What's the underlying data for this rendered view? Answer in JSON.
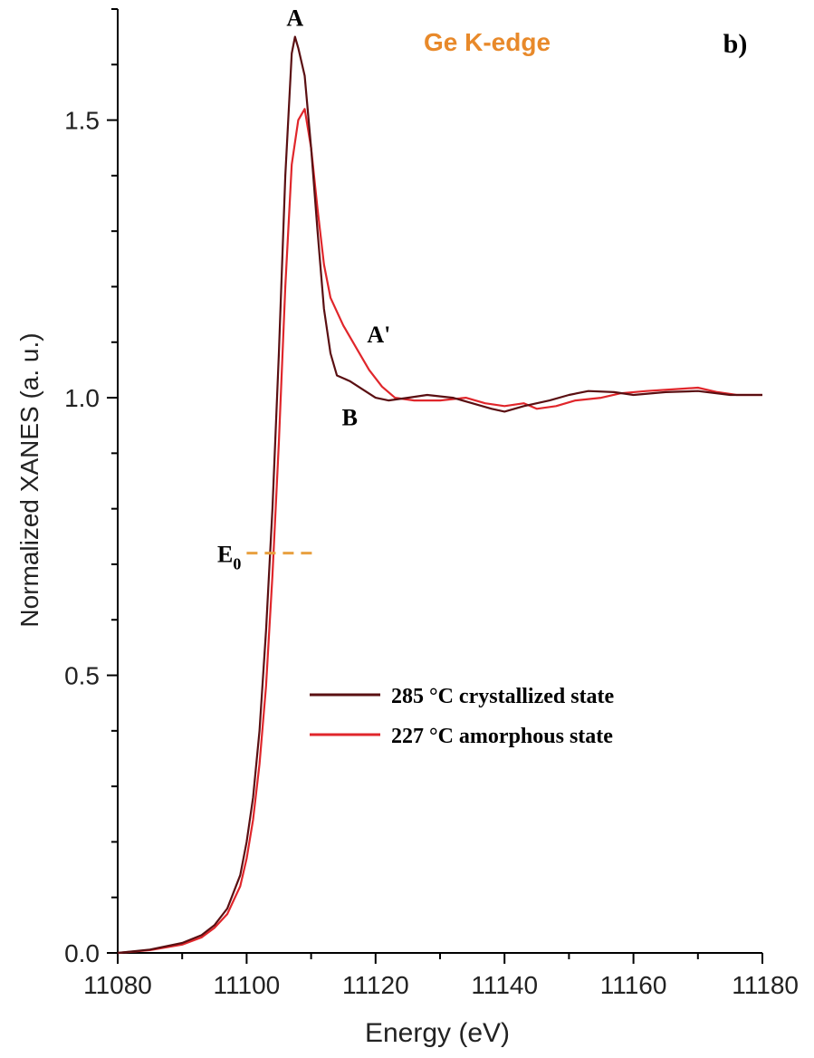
{
  "chart_data": {
    "type": "line",
    "title": "Ge K-edge",
    "panel_label": "b)",
    "xlabel": "Energy (eV)",
    "ylabel": "Normalized XANES (a. u.)",
    "xlim": [
      11080,
      11180
    ],
    "ylim": [
      0.0,
      1.7
    ],
    "x_ticks": [
      11080,
      11100,
      11120,
      11140,
      11160,
      11180
    ],
    "x_tick_labels": [
      "11080",
      "11100",
      "11120",
      "11140",
      "11160",
      "11180"
    ],
    "y_ticks": [
      0.0,
      0.5,
      1.0,
      1.5
    ],
    "y_tick_labels": [
      "0.0",
      "0.5",
      "1.0",
      "1.5"
    ],
    "grid": false,
    "legend_position": "lower-right",
    "colors": {
      "crystallized": "#5a0f12",
      "amorphous": "#e0262b",
      "title": "#e8892a",
      "e0_line": "#e8a040",
      "axis": "#000000"
    },
    "series": [
      {
        "name": "285 °C crystallized state",
        "color_key": "crystallized",
        "points": [
          [
            11080,
            0.0
          ],
          [
            11085,
            0.006
          ],
          [
            11090,
            0.018
          ],
          [
            11093,
            0.032
          ],
          [
            11095,
            0.05
          ],
          [
            11097,
            0.08
          ],
          [
            11099,
            0.14
          ],
          [
            11100,
            0.2
          ],
          [
            11101,
            0.28
          ],
          [
            11102,
            0.4
          ],
          [
            11103,
            0.58
          ],
          [
            11104,
            0.8
          ],
          [
            11105,
            1.08
          ],
          [
            11106,
            1.4
          ],
          [
            11107,
            1.62
          ],
          [
            11107.5,
            1.65
          ],
          [
            11108,
            1.63
          ],
          [
            11109,
            1.58
          ],
          [
            11110,
            1.45
          ],
          [
            11111,
            1.3
          ],
          [
            11112,
            1.16
          ],
          [
            11113,
            1.08
          ],
          [
            11114,
            1.04
          ],
          [
            11116,
            1.03
          ],
          [
            11118,
            1.015
          ],
          [
            11120,
            1.0
          ],
          [
            11122,
            0.995
          ],
          [
            11125,
            1.0
          ],
          [
            11128,
            1.005
          ],
          [
            11132,
            1.0
          ],
          [
            11135,
            0.99
          ],
          [
            11138,
            0.98
          ],
          [
            11140,
            0.975
          ],
          [
            11143,
            0.985
          ],
          [
            11147,
            0.995
          ],
          [
            11150,
            1.005
          ],
          [
            11153,
            1.012
          ],
          [
            11157,
            1.01
          ],
          [
            11160,
            1.005
          ],
          [
            11165,
            1.01
          ],
          [
            11170,
            1.012
          ],
          [
            11175,
            1.005
          ],
          [
            11180,
            1.005
          ]
        ]
      },
      {
        "name": "227 °C amorphous state",
        "color_key": "amorphous",
        "points": [
          [
            11080,
            0.0
          ],
          [
            11085,
            0.005
          ],
          [
            11090,
            0.015
          ],
          [
            11093,
            0.028
          ],
          [
            11095,
            0.045
          ],
          [
            11097,
            0.07
          ],
          [
            11099,
            0.12
          ],
          [
            11100,
            0.17
          ],
          [
            11101,
            0.24
          ],
          [
            11102,
            0.34
          ],
          [
            11103,
            0.48
          ],
          [
            11104,
            0.68
          ],
          [
            11105,
            0.92
          ],
          [
            11106,
            1.2
          ],
          [
            11107,
            1.42
          ],
          [
            11108,
            1.5
          ],
          [
            11109,
            1.52
          ],
          [
            11110,
            1.45
          ],
          [
            11111,
            1.34
          ],
          [
            11112,
            1.24
          ],
          [
            11113,
            1.18
          ],
          [
            11115,
            1.13
          ],
          [
            11117,
            1.09
          ],
          [
            11119,
            1.05
          ],
          [
            11121,
            1.02
          ],
          [
            11123,
            1.0
          ],
          [
            11126,
            0.995
          ],
          [
            11130,
            0.995
          ],
          [
            11134,
            1.0
          ],
          [
            11137,
            0.99
          ],
          [
            11140,
            0.985
          ],
          [
            11143,
            0.99
          ],
          [
            11145,
            0.98
          ],
          [
            11148,
            0.985
          ],
          [
            11151,
            0.995
          ],
          [
            11155,
            1.0
          ],
          [
            11158,
            1.008
          ],
          [
            11162,
            1.012
          ],
          [
            11166,
            1.015
          ],
          [
            11170,
            1.018
          ],
          [
            11173,
            1.01
          ],
          [
            11176,
            1.005
          ],
          [
            11180,
            1.005
          ]
        ]
      }
    ],
    "annotations": [
      {
        "text": "A",
        "x": 11107.5,
        "y": 1.67
      },
      {
        "text": "A'",
        "x": 11120.5,
        "y": 1.1
      },
      {
        "text": "B",
        "x": 11116,
        "y": 0.95
      },
      {
        "text": "E",
        "sub": "0",
        "x": 11100,
        "y": 0.72
      }
    ],
    "e0_marker": {
      "y": 0.72,
      "x_start": 11100,
      "x_end": 11111
    }
  }
}
